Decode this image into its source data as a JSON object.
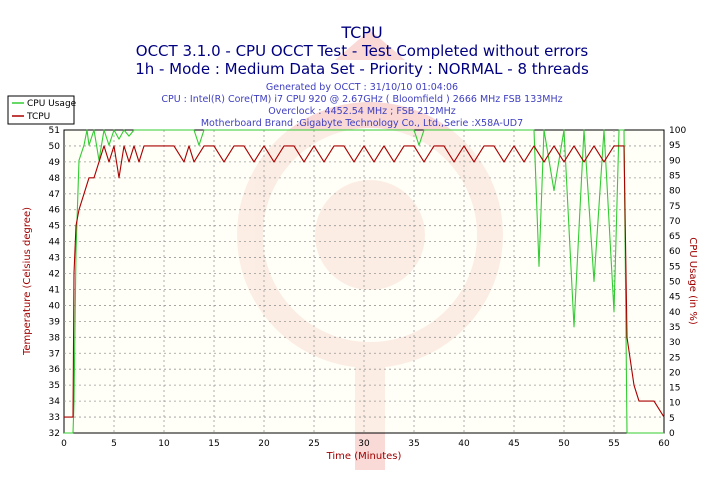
{
  "chart_data": {
    "type": "line",
    "title": "TCPU",
    "subtitle_lines": [
      "OCCT 3.1.0 - CPU OCCT Test - Test Completed without errors",
      "1h - Mode : Medium Data Set - Priority : NORMAL - 8 threads"
    ],
    "info_lines": [
      "Generated by OCCT : 31/10/10 01:04:06",
      "CPU : Intel(R) Core(TM) i7 CPU 920 @ 2.67GHz ( Bloomfield ) 2666 MHz FSB 133MHz",
      "Overclock : 4452.54 MHz ; FSB 212MHz",
      "Motherboard Brand :Gigabyte Technology Co., Ltd.,Serie :X58A-UD7"
    ],
    "xlabel": "Time (Minutes)",
    "ylabel_left": "Temperature (Celsius degree)",
    "ylabel_right": "CPU Usage (in %)",
    "xlim": [
      0,
      60
    ],
    "ylim_left": [
      32,
      51
    ],
    "ylim_right": [
      0,
      100
    ],
    "x_ticks": [
      0,
      5,
      10,
      15,
      20,
      25,
      30,
      35,
      40,
      45,
      50,
      55,
      60
    ],
    "y_left_ticks": [
      32,
      33,
      34,
      35,
      36,
      37,
      38,
      39,
      40,
      41,
      42,
      43,
      44,
      45,
      46,
      47,
      48,
      49,
      50,
      51
    ],
    "y_right_ticks": [
      0,
      5,
      10,
      15,
      20,
      25,
      30,
      35,
      40,
      45,
      50,
      55,
      60,
      65,
      70,
      75,
      80,
      85,
      90,
      95,
      100
    ],
    "grid": true,
    "legend_position": "top-left",
    "series": [
      {
        "name": "CPU Usage",
        "axis": "right",
        "color": "#33cc33",
        "x": [
          0,
          0.9,
          1.0,
          1.2,
          1.5,
          2,
          2.3,
          2.5,
          3,
          3.5,
          4,
          4.5,
          5,
          5.5,
          6,
          6.5,
          7,
          8,
          10,
          12,
          13,
          13.5,
          14,
          15,
          16,
          18,
          20,
          22,
          24,
          26,
          28,
          30,
          32,
          34,
          35,
          35.5,
          36,
          38,
          40,
          42,
          44,
          46,
          47,
          47.5,
          48,
          49,
          50,
          51,
          52,
          53,
          54,
          55,
          55.5,
          56,
          56.3,
          60
        ],
        "y": [
          0,
          0,
          10,
          60,
          90,
          95,
          100,
          95,
          100,
          90,
          100,
          95,
          100,
          97,
          100,
          98,
          100,
          100,
          100,
          100,
          100,
          95,
          100,
          100,
          100,
          100,
          100,
          100,
          100,
          100,
          100,
          100,
          100,
          100,
          100,
          95,
          100,
          100,
          100,
          100,
          100,
          100,
          100,
          55,
          100,
          80,
          100,
          35,
          100,
          50,
          100,
          40,
          100,
          100,
          0,
          0
        ]
      },
      {
        "name": "TCPU",
        "axis": "left",
        "color": "#aa0000",
        "x": [
          0,
          0.9,
          1.0,
          1.2,
          1.5,
          2,
          2.5,
          3,
          3.5,
          4,
          4.5,
          5,
          5.5,
          6,
          6.5,
          7,
          7.5,
          8,
          9,
          10,
          11,
          12,
          12.5,
          13,
          14,
          15,
          16,
          17,
          18,
          19,
          20,
          21,
          22,
          23,
          24,
          25,
          26,
          27,
          28,
          29,
          30,
          31,
          32,
          33,
          34,
          35,
          36,
          37,
          38,
          39,
          40,
          41,
          42,
          43,
          44,
          45,
          46,
          47,
          48,
          49,
          50,
          51,
          52,
          53,
          54,
          55,
          55.5,
          56,
          56.3,
          57,
          57.5,
          58,
          59,
          60
        ],
        "y": [
          33,
          33,
          42,
          45,
          46,
          47,
          48,
          48,
          49,
          50,
          49,
          50,
          48,
          50,
          49,
          50,
          49,
          50,
          50,
          50,
          50,
          49,
          50,
          49,
          50,
          50,
          49,
          50,
          50,
          49,
          50,
          49,
          50,
          50,
          49,
          50,
          49,
          50,
          50,
          49,
          50,
          49,
          50,
          49,
          50,
          50,
          49,
          50,
          50,
          49,
          50,
          49,
          50,
          50,
          49,
          50,
          49,
          50,
          49,
          50,
          49,
          50,
          49,
          50,
          49,
          50,
          50,
          50,
          38,
          35,
          34,
          34,
          34,
          33
        ]
      }
    ]
  }
}
